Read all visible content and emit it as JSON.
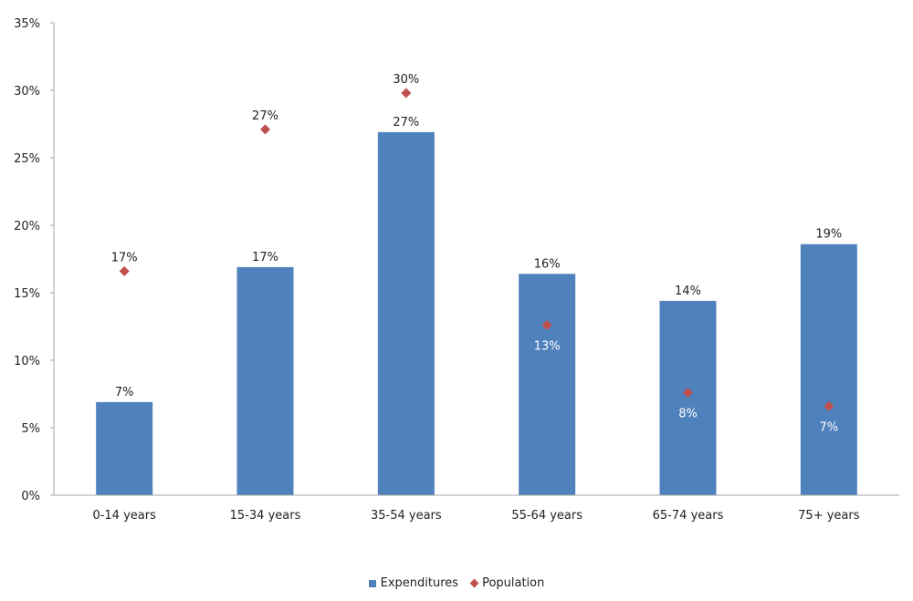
{
  "chart_data": {
    "type": "bar",
    "title": "",
    "xlabel": "",
    "ylabel": "",
    "ylim": [
      0,
      35
    ],
    "yticks": [
      "0%",
      "5%",
      "10%",
      "15%",
      "20%",
      "25%",
      "30%",
      "35%"
    ],
    "grid": false,
    "legend_position": "bottom",
    "categories": [
      "0-14 years",
      "15-34 years",
      "35-54 years",
      "55-64 years",
      "65-74 years",
      "75+ years"
    ],
    "series": [
      {
        "name": "Expenditures",
        "type": "bar",
        "color": "#4F81BD",
        "values": [
          6.9,
          16.9,
          26.9,
          16.4,
          14.4,
          18.6
        ],
        "labels": [
          "7%",
          "17%",
          "27%",
          "16%",
          "14%",
          "19%"
        ]
      },
      {
        "name": "Population",
        "type": "scatter",
        "marker": "diamond",
        "color": "#C0504D",
        "values": [
          16.6,
          27.1,
          29.8,
          12.6,
          7.6,
          6.6
        ],
        "labels": [
          "17%",
          "27%",
          "30%",
          "13%",
          "8%",
          "7%"
        ]
      }
    ]
  },
  "legend": {
    "items": [
      {
        "label": "Expenditures",
        "color": "#4F81BD",
        "shape": "square"
      },
      {
        "label": "Population",
        "color": "#C0504D",
        "shape": "diamond"
      }
    ]
  }
}
